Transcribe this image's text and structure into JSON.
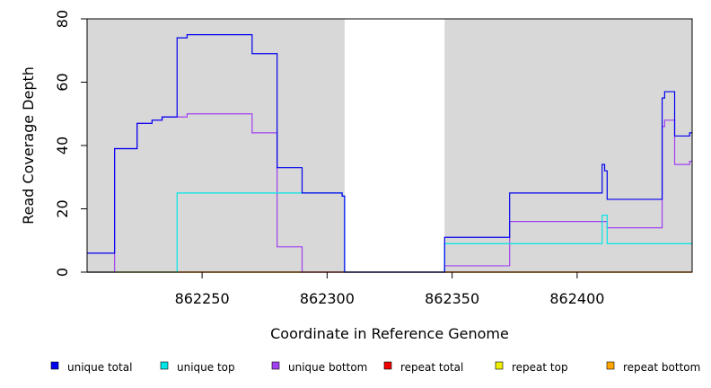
{
  "chart_data": {
    "type": "line",
    "xlabel": "Coordinate in Reference Genome",
    "ylabel": "Read Coverage Depth",
    "xlim": [
      862204,
      862446
    ],
    "ylim": [
      0,
      80
    ],
    "x_ticks": [
      862250,
      862300,
      862350,
      862400
    ],
    "x_tick_labels": [
      "862250",
      "862300",
      "862350",
      "862400"
    ],
    "y_ticks": [
      0,
      20,
      40,
      60,
      80
    ],
    "y_tick_labels": [
      "0",
      "20",
      "40",
      "60",
      "80"
    ],
    "shaded_regions": [
      [
        862204,
        862307
      ],
      [
        862347,
        862446
      ]
    ],
    "shade_color": "#d8d8d8",
    "legend_position": "bottom",
    "series": [
      {
        "name": "unique total",
        "color": "#0000ee",
        "points": [
          [
            862204,
            6
          ],
          [
            862215,
            6
          ],
          [
            862215,
            39
          ],
          [
            862224,
            39
          ],
          [
            862224,
            47
          ],
          [
            862230,
            47
          ],
          [
            862230,
            48
          ],
          [
            862234,
            48
          ],
          [
            862234,
            49
          ],
          [
            862240,
            49
          ],
          [
            862240,
            74
          ],
          [
            862244,
            74
          ],
          [
            862244,
            75
          ],
          [
            862270,
            75
          ],
          [
            862270,
            69
          ],
          [
            862280,
            69
          ],
          [
            862280,
            33
          ],
          [
            862290,
            33
          ],
          [
            862290,
            25
          ],
          [
            862306,
            25
          ],
          [
            862306,
            24
          ],
          [
            862307,
            24
          ],
          [
            862307,
            0
          ],
          [
            862347,
            0
          ],
          [
            862347,
            11
          ],
          [
            862373,
            11
          ],
          [
            862373,
            25
          ],
          [
            862410,
            25
          ],
          [
            862410,
            34
          ],
          [
            862411,
            34
          ],
          [
            862411,
            32
          ],
          [
            862412,
            32
          ],
          [
            862412,
            23
          ],
          [
            862434,
            23
          ],
          [
            862434,
            55
          ],
          [
            862435,
            55
          ],
          [
            862435,
            57
          ],
          [
            862439,
            57
          ],
          [
            862439,
            43
          ],
          [
            862445,
            43
          ],
          [
            862445,
            44
          ],
          [
            862446,
            44
          ]
        ]
      },
      {
        "name": "unique top",
        "color": "#00e5e5",
        "points": [
          [
            862204,
            0
          ],
          [
            862240,
            0
          ],
          [
            862240,
            25
          ],
          [
            862306,
            25
          ],
          [
            862306,
            24
          ],
          [
            862307,
            24
          ],
          [
            862307,
            0
          ],
          [
            862347,
            0
          ],
          [
            862347,
            9
          ],
          [
            862410,
            9
          ],
          [
            862410,
            18
          ],
          [
            862412,
            18
          ],
          [
            862412,
            9
          ],
          [
            862446,
            9
          ]
        ]
      },
      {
        "name": "unique bottom",
        "color": "#a040f0",
        "points": [
          [
            862204,
            0
          ],
          [
            862215,
            0
          ],
          [
            862215,
            39
          ],
          [
            862224,
            39
          ],
          [
            862224,
            47
          ],
          [
            862230,
            47
          ],
          [
            862230,
            48
          ],
          [
            862234,
            48
          ],
          [
            862234,
            49
          ],
          [
            862244,
            49
          ],
          [
            862244,
            50
          ],
          [
            862270,
            50
          ],
          [
            862270,
            44
          ],
          [
            862280,
            44
          ],
          [
            862280,
            8
          ],
          [
            862290,
            8
          ],
          [
            862290,
            0
          ],
          [
            862347,
            0
          ],
          [
            862347,
            2
          ],
          [
            862373,
            2
          ],
          [
            862373,
            16
          ],
          [
            862412,
            16
          ],
          [
            862412,
            14
          ],
          [
            862434,
            14
          ],
          [
            862434,
            46
          ],
          [
            862435,
            46
          ],
          [
            862435,
            48
          ],
          [
            862439,
            48
          ],
          [
            862439,
            34
          ],
          [
            862445,
            34
          ],
          [
            862445,
            35
          ],
          [
            862446,
            35
          ]
        ]
      },
      {
        "name": "repeat total",
        "color": "#ee0000",
        "points": [
          [
            862204,
            0
          ],
          [
            862446,
            0
          ]
        ]
      },
      {
        "name": "repeat top",
        "color": "#eeee00",
        "points": [
          [
            862204,
            0
          ],
          [
            862446,
            0
          ]
        ]
      },
      {
        "name": "repeat bottom",
        "color": "#ffa500",
        "points": [
          [
            862204,
            0
          ],
          [
            862446,
            0
          ]
        ]
      }
    ]
  }
}
